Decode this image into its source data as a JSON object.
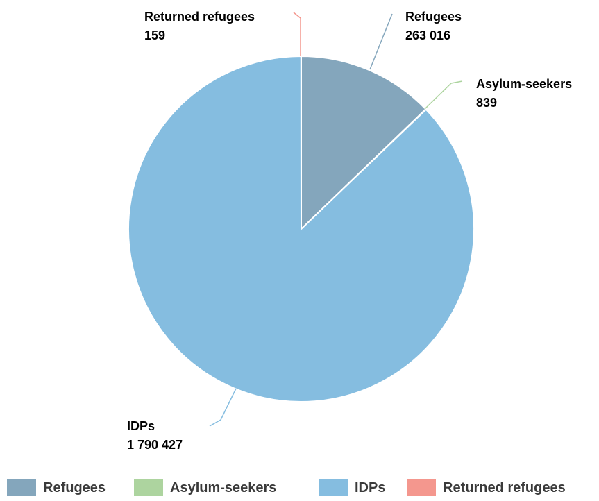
{
  "chart_data": {
    "type": "pie",
    "title": "",
    "categories": [
      "Refugees",
      "Asylum-seekers",
      "IDPs",
      "Returned refugees"
    ],
    "values": [
      263016,
      839,
      1790427,
      159
    ],
    "value_labels": [
      "263 016",
      "839",
      "1 790 427",
      "159"
    ],
    "colors": [
      "#84a6bc",
      "#add49f",
      "#85bde0",
      "#f4978e"
    ],
    "legend_position": "bottom"
  },
  "legend": {
    "items": [
      {
        "label": "Refugees",
        "color": "#84a6bc"
      },
      {
        "label": "Asylum-seekers",
        "color": "#add49f"
      },
      {
        "label": "IDPs",
        "color": "#85bde0"
      },
      {
        "label": "Returned refugees",
        "color": "#f4978e"
      }
    ]
  }
}
